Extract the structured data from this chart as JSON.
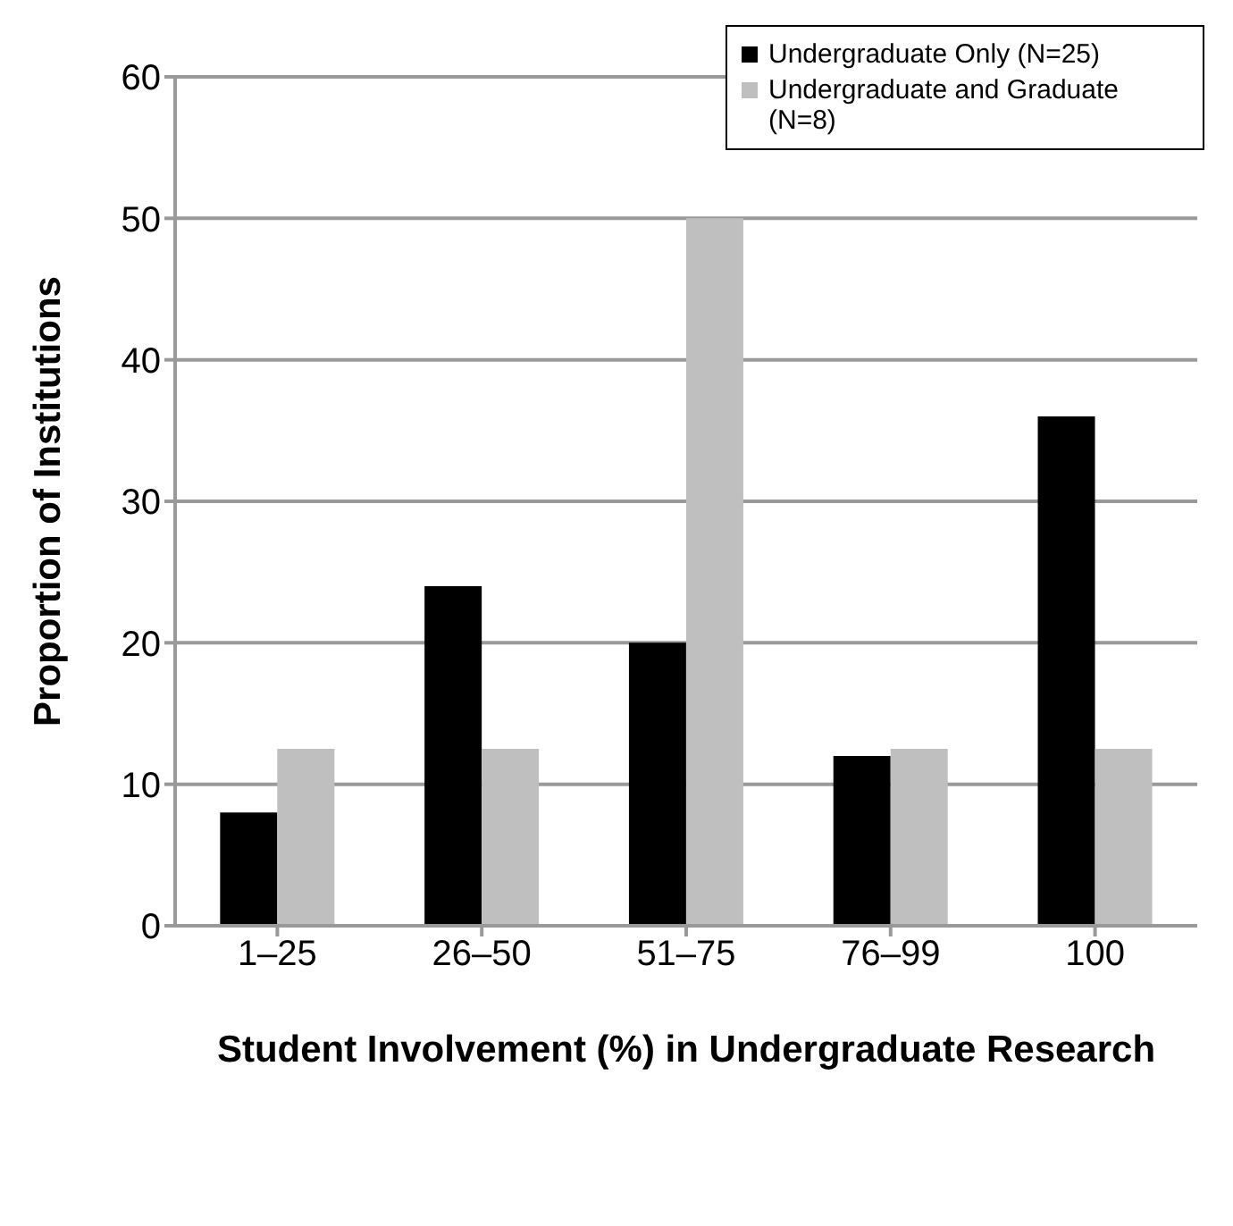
{
  "chart_data": {
    "type": "bar",
    "xlabel": "Student Involvement (%) in Undergraduate Research",
    "ylabel": "Proportion of Institutions",
    "categories": [
      "1–25",
      "26–50",
      "51–75",
      "76–99",
      "100"
    ],
    "series": [
      {
        "name": "Undergraduate Only (N=25)",
        "color": "#000000",
        "values": [
          8,
          24,
          20,
          12,
          36
        ]
      },
      {
        "name": "Undergraduate and Graduate (N=8)",
        "color": "#bfbfbf",
        "values": [
          12.5,
          12.5,
          50,
          12.5,
          12.5
        ]
      }
    ],
    "ylim": [
      0,
      60
    ],
    "yticks": [
      0,
      10,
      20,
      30,
      40,
      50,
      60
    ],
    "grid": "y",
    "legend": "top right"
  }
}
